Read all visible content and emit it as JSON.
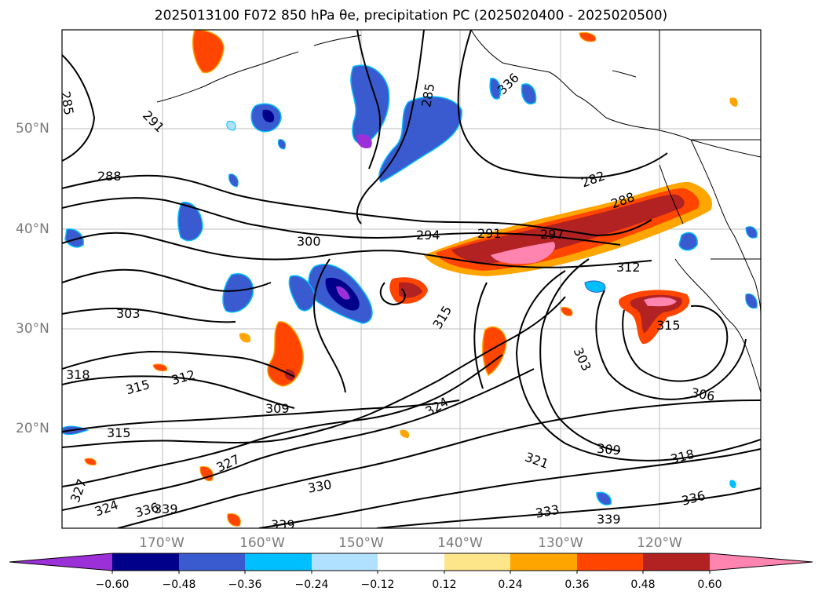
{
  "title": "2025013100 F072 850 hPa θe, precipitation PC (2025020400 - 2025020500)",
  "latitude_labels": [
    "50°N",
    "40°N",
    "30°N",
    "20°N"
  ],
  "longitude_labels": [
    "170°W",
    "160°W",
    "150°W",
    "140°W",
    "130°W",
    "120°W"
  ],
  "contour_labels": [
    "285",
    "291",
    "288",
    "285",
    "282",
    "288",
    "294",
    "291",
    "297",
    "300",
    "303",
    "312",
    "318",
    "315",
    "312",
    "309",
    "315",
    "315",
    "324",
    "303",
    "315",
    "306",
    "309",
    "321",
    "318",
    "327",
    "324",
    "327",
    "330",
    "336",
    "339",
    "336",
    "333",
    "339",
    "339",
    "336"
  ],
  "colorbar": {
    "tick_labels": [
      "−0.60",
      "−0.48",
      "−0.36",
      "−0.24",
      "−0.12",
      "0.12",
      "0.24",
      "0.36",
      "0.48",
      "0.60"
    ],
    "colors": [
      "#9b30d8",
      "#00008b",
      "#3a5bd0",
      "#00bfff",
      "#b0e2ff",
      "#ffffff",
      "#fde68a",
      "#ffa500",
      "#ff4500",
      "#b22222",
      "#ff85b0"
    ]
  },
  "colors": {
    "coast": "#000000",
    "contour": "#000000",
    "grid": "#bdbdbd",
    "tick_text": "#7a7a7a"
  }
}
